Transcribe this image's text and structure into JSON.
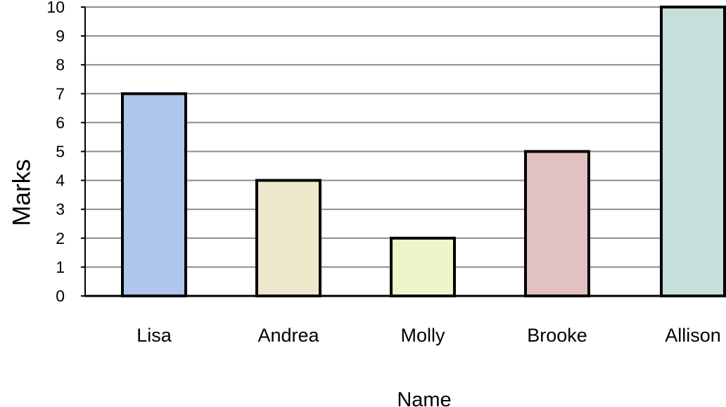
{
  "chart_data": {
    "type": "bar",
    "categories": [
      "Lisa",
      "Andrea",
      "Molly",
      "Brooke",
      "Allison"
    ],
    "values": [
      7,
      4,
      2,
      5,
      10
    ],
    "bar_colors": [
      "#aec6ea",
      "#ede7cb",
      "#eff4c9",
      "#e2c1c3",
      "#c5dfdb"
    ],
    "xlabel": "Name",
    "ylabel": "Marks",
    "ylim": [
      0,
      10
    ],
    "yticks": [
      0,
      1,
      2,
      3,
      4,
      5,
      6,
      7,
      8,
      9,
      10
    ],
    "grid": true,
    "legend": "none"
  }
}
